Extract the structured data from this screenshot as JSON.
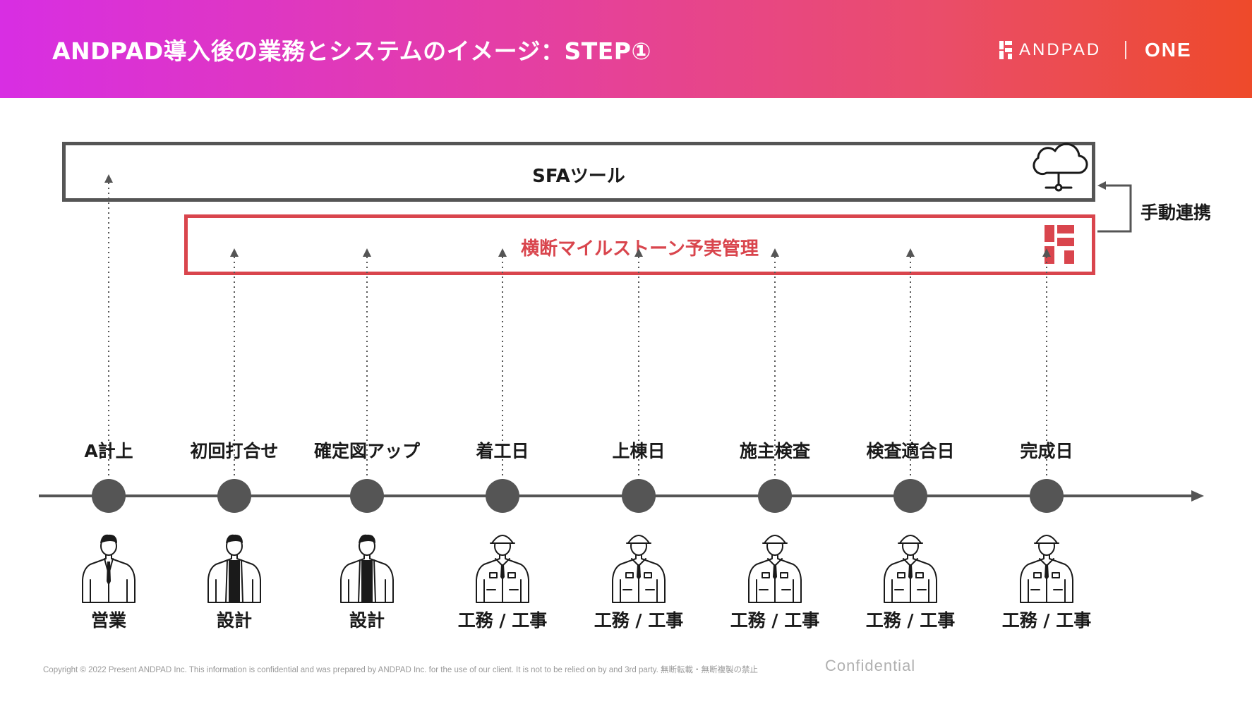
{
  "header": {
    "title": "ANDPAD導入後の業務とシステムのイメージ：STEP①",
    "brand_andpad": "ANDPAD",
    "brand_one": "ONE",
    "colors": {
      "gradient_start": "#d82ee3",
      "gradient_end": "#ee4a2a"
    }
  },
  "diagram": {
    "sfa_tool": {
      "label": "SFAツール",
      "icon": "cloud-network-icon"
    },
    "milestone_tool": {
      "label": "横断マイルストーン予実管理",
      "icon": "andpad-logo-icon"
    },
    "sync_label": "手動連携",
    "colors": {
      "accent_red": "#d9454d",
      "dark_gray": "#555555"
    },
    "stages": [
      {
        "label": "A計上",
        "role": "営業",
        "person": "suit"
      },
      {
        "label": "初回打合せ",
        "role": "設計",
        "person": "jacket"
      },
      {
        "label": "確定図アップ",
        "role": "設計",
        "person": "jacket"
      },
      {
        "label": "着工日",
        "role": "工務 / 工事",
        "person": "worker"
      },
      {
        "label": "上棟日",
        "role": "工務 / 工事",
        "person": "worker"
      },
      {
        "label": "施主検査",
        "role": "工務 / 工事",
        "person": "worker"
      },
      {
        "label": "検査適合日",
        "role": "工務 / 工事",
        "person": "worker"
      },
      {
        "label": "完成日",
        "role": "工務 / 工事",
        "person": "worker"
      }
    ]
  },
  "footer": {
    "copyright": "Copyright © 2022 Present ANDPAD Inc. This information is confidential and was prepared by ANDPAD Inc. for the use of our client. It is not to be relied on by and 3rd party.  無断転載・無断複製の禁止",
    "confidential": "Confidential"
  }
}
